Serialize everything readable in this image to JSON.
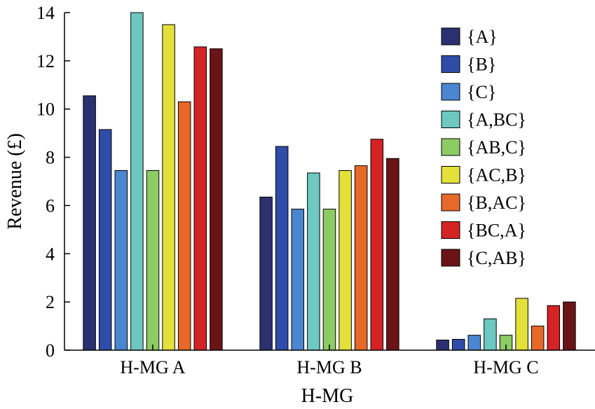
{
  "chart_data": {
    "type": "bar",
    "categories": [
      "H-MG A",
      "H-MG B",
      "H-MG C"
    ],
    "series": [
      {
        "name": "{A}",
        "color": "#2b3170",
        "values": [
          10.55,
          6.35,
          0.42
        ]
      },
      {
        "name": "{B}",
        "color": "#2f4ca8",
        "values": [
          9.15,
          8.45,
          0.45
        ]
      },
      {
        "name": "{C}",
        "color": "#4a86d2",
        "values": [
          7.45,
          5.85,
          0.62
        ]
      },
      {
        "name": "{A,BC}",
        "color": "#6cc8c0",
        "values": [
          14.0,
          7.35,
          1.3
        ]
      },
      {
        "name": "{AB,C}",
        "color": "#8dcb63",
        "values": [
          7.45,
          5.85,
          0.62
        ]
      },
      {
        "name": "{AC,B}",
        "color": "#e4e03a",
        "values": [
          13.5,
          7.45,
          2.15
        ]
      },
      {
        "name": "{B,AC}",
        "color": "#e8682a",
        "values": [
          10.3,
          7.65,
          1.0
        ]
      },
      {
        "name": "{BC,A}",
        "color": "#d42324",
        "values": [
          12.58,
          8.75,
          1.85
        ]
      },
      {
        "name": "{C,AB}",
        "color": "#6a1418",
        "values": [
          12.5,
          7.95,
          2.0
        ]
      }
    ],
    "xlabel": "H-MG",
    "ylabel": "Revenue (£)",
    "ylim": [
      0,
      14
    ],
    "yticks": [
      "0",
      "2",
      "4",
      "6",
      "8",
      "10",
      "12",
      "14"
    ],
    "legend_position": "top-right",
    "grid": false
  }
}
